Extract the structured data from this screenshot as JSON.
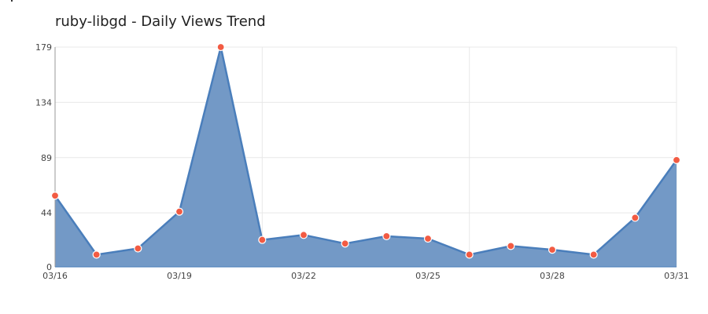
{
  "chart_data": {
    "type": "area",
    "title": "ruby-libgd - Daily Views Trend",
    "xlabel": "",
    "ylabel": "",
    "categories": [
      "03/16",
      "03/17",
      "03/18",
      "03/19",
      "03/20",
      "03/21",
      "03/22",
      "03/23",
      "03/24",
      "03/25",
      "03/26",
      "03/27",
      "03/28",
      "03/29",
      "03/30",
      "03/31"
    ],
    "series": [
      {
        "name": "Daily Views",
        "values": [
          58,
          10,
          15,
          45,
          179,
          22,
          26,
          19,
          25,
          23,
          10,
          17,
          14,
          10,
          40,
          87
        ]
      }
    ],
    "ylim": [
      0,
      179
    ],
    "y_ticks": [
      "0",
      "44",
      "89",
      "134",
      "179"
    ],
    "x_ticks": [
      "03/16",
      "03/19",
      "03/22",
      "03/25",
      "03/28",
      "03/31"
    ],
    "grid": true,
    "legend": "none",
    "colors": {
      "fill": "#7399c6",
      "line": "#4a7ebb",
      "marker": "#f25b43",
      "marker_stroke": "#ffffff",
      "grid": "#e8e8e8",
      "axis": "#999999"
    }
  }
}
